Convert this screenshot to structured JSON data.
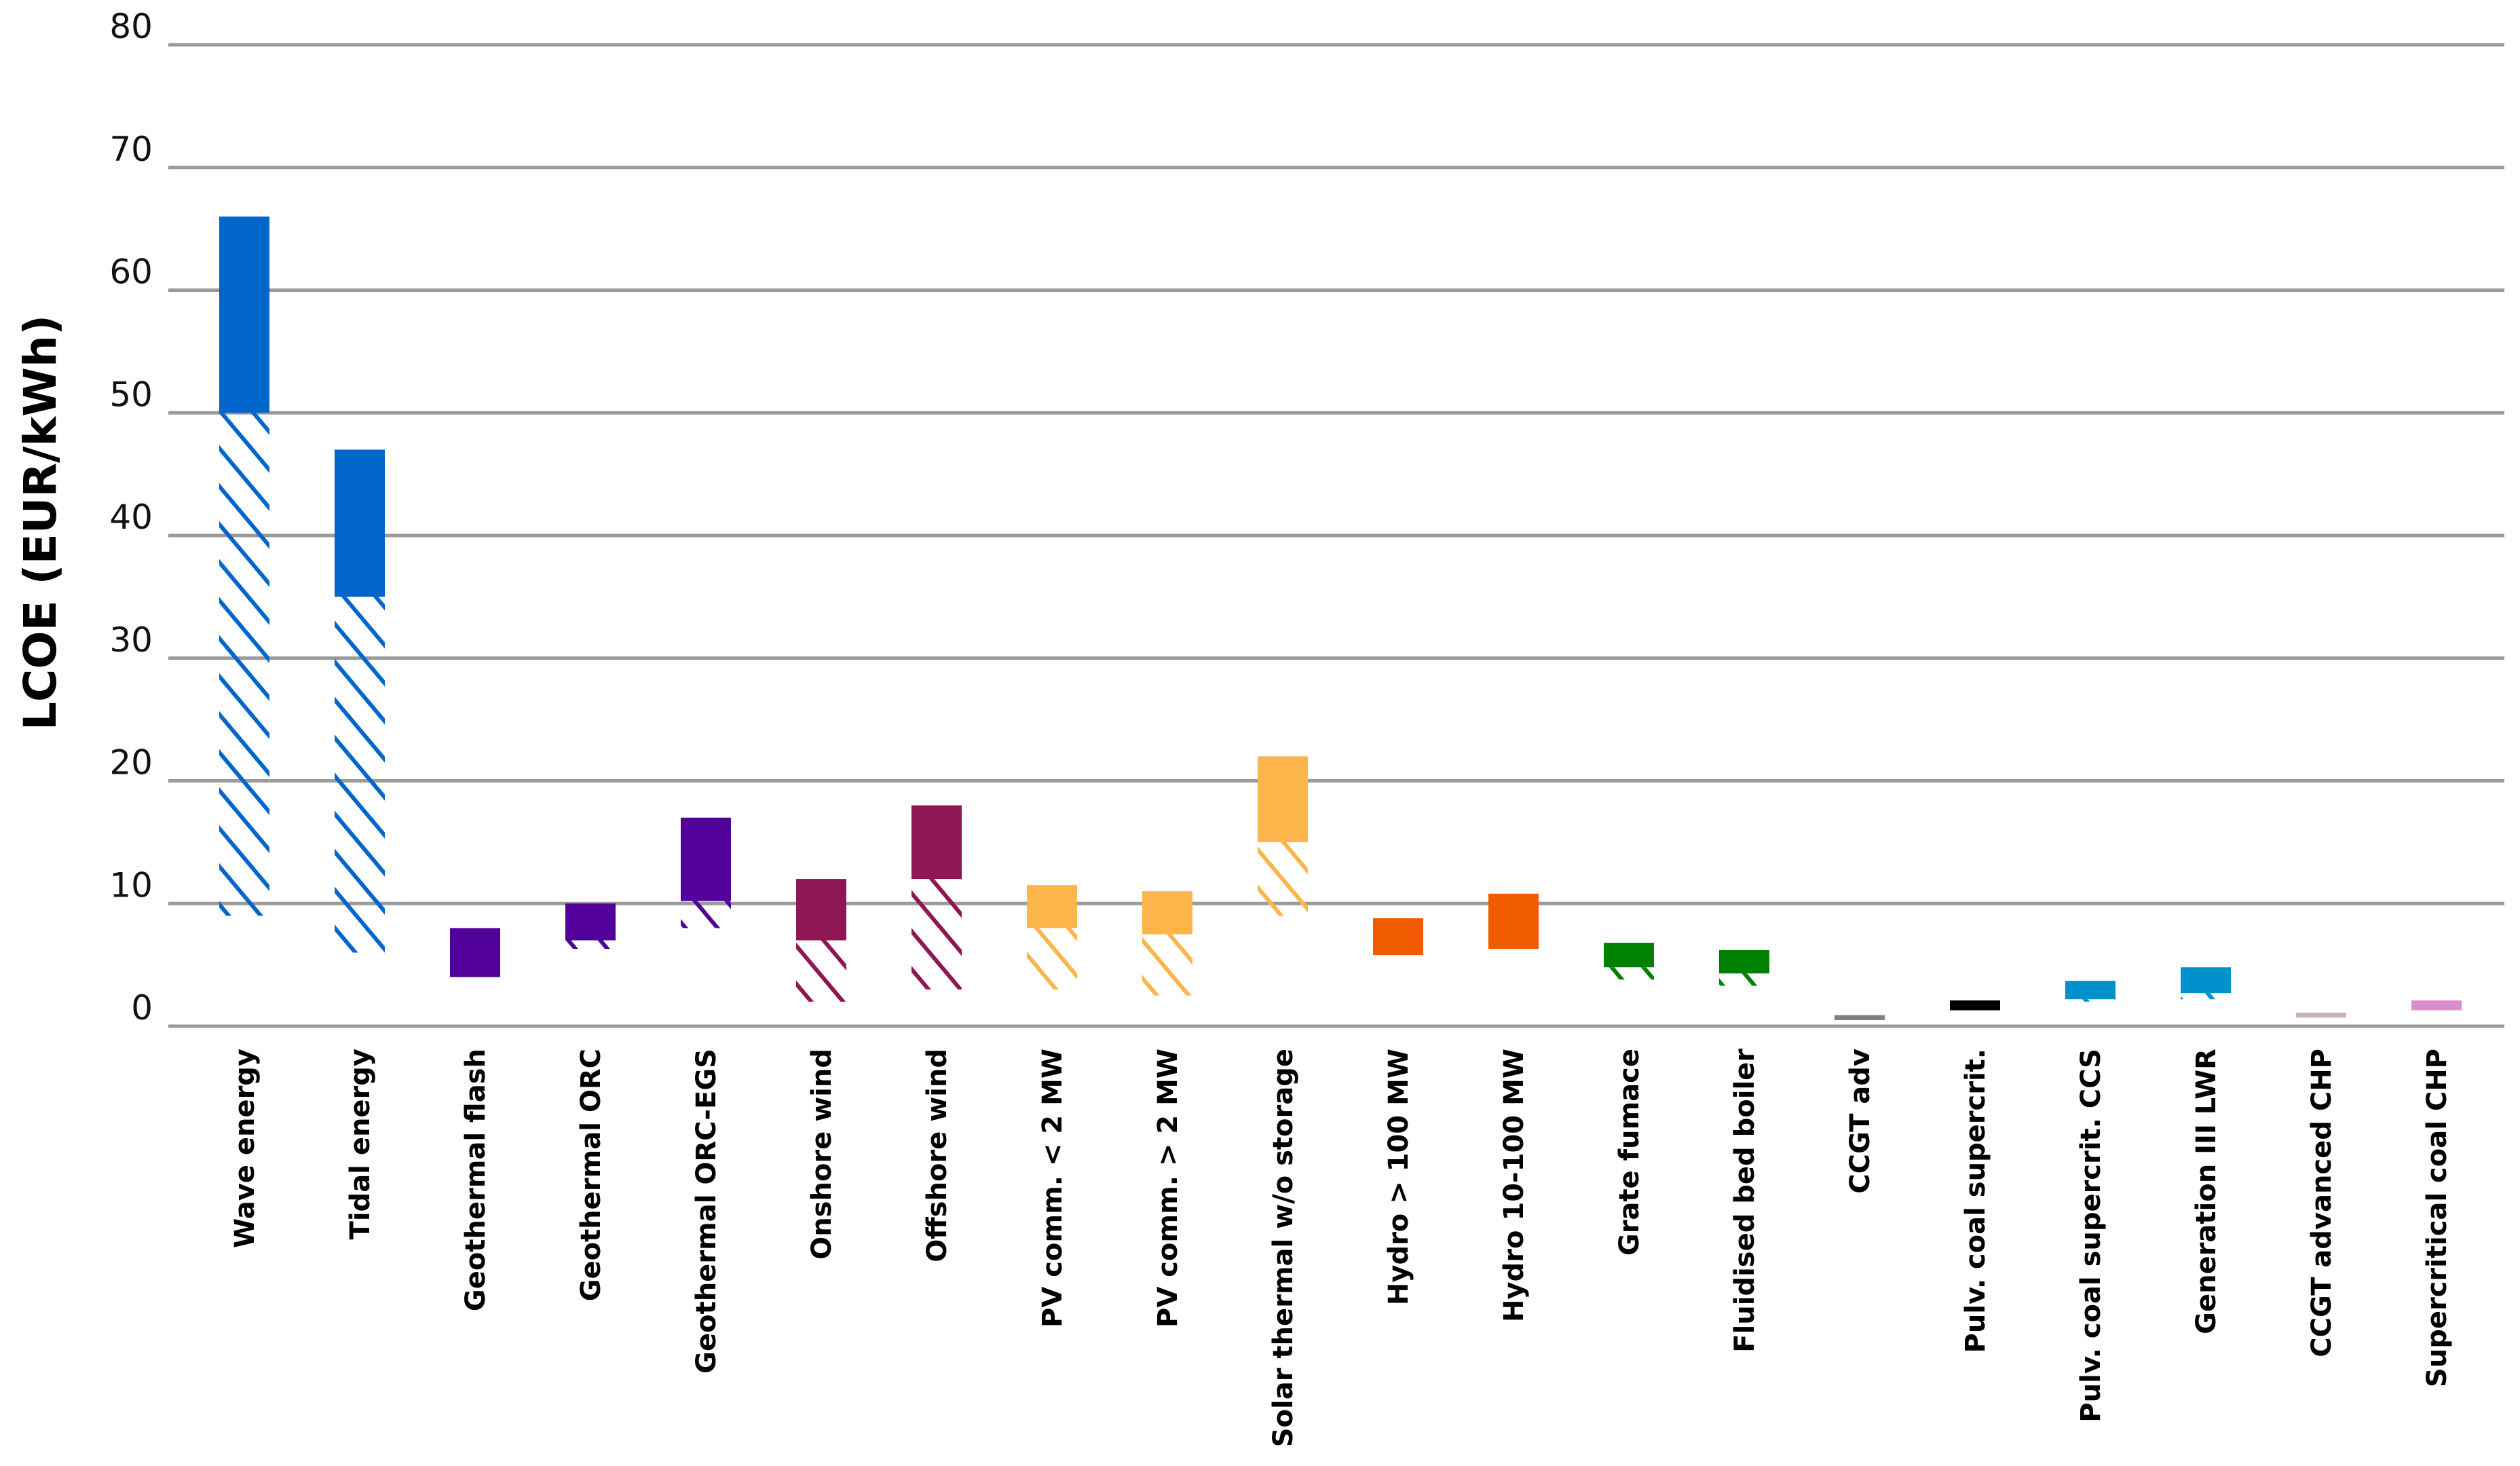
{
  "chart_data": {
    "type": "bar",
    "subtype": "floating-range",
    "title": "",
    "xlabel": "",
    "ylabel": "LCOE (EUR/kWh)",
    "ylim": [
      0,
      80
    ],
    "yticks": [
      "0",
      "10",
      "20",
      "30",
      "40",
      "50",
      "60",
      "70",
      "80"
    ],
    "grid": true,
    "legend": "none",
    "note": "",
    "categories": [
      {
        "name": "Wave energy",
        "low": 9,
        "mid": 50,
        "high": 66,
        "color": "#0066CC"
      },
      {
        "name": "Tidal energy",
        "low": 6,
        "mid": 35,
        "high": 47,
        "color": "#0066CC"
      },
      {
        "name": "Geothermal flash",
        "low": 4,
        "mid": 4,
        "high": 8,
        "color": "#52009A"
      },
      {
        "name": "Geothermal ORC",
        "low": 6.3,
        "mid": 7,
        "high": 10,
        "color": "#52009A"
      },
      {
        "name": "Geothermal ORC-EGS",
        "low": 8,
        "mid": 10.2,
        "high": 17,
        "color": "#52009A"
      },
      {
        "name": "Onshore wind",
        "low": 2,
        "mid": 7,
        "high": 12,
        "color": "#8E1652"
      },
      {
        "name": "Offshore wind",
        "low": 3,
        "mid": 12,
        "high": 18,
        "color": "#8E1652"
      },
      {
        "name": "PV comm. < 2 MW",
        "low": 3,
        "mid": 8,
        "high": 11.5,
        "color": "#FBB54B"
      },
      {
        "name": "PV comm. > 2 MW",
        "low": 2.5,
        "mid": 7.5,
        "high": 11,
        "color": "#FBB54B"
      },
      {
        "name": "Solar thermal w/o storage",
        "low": 9,
        "mid": 15,
        "high": 22,
        "color": "#FBB54B"
      },
      {
        "name": "Hydro > 100 MW",
        "low": 5.8,
        "mid": 5.8,
        "high": 8.8,
        "color": "#F05A00"
      },
      {
        "name": "Hydro 10-100 MW",
        "low": 6.3,
        "mid": 6.3,
        "high": 10.8,
        "color": "#F05A00"
      },
      {
        "name": "Grate fumace",
        "low": 3.8,
        "mid": 4.8,
        "high": 6.8,
        "color": "#008000"
      },
      {
        "name": "Fluidised bed boiler",
        "low": 3.3,
        "mid": 4.3,
        "high": 6.2,
        "color": "#008000"
      },
      {
        "name": "CCGT adv",
        "low": 0.5,
        "mid": 0.5,
        "high": 0.9,
        "color": "#808080"
      },
      {
        "name": "Pulv. coal supercrit.",
        "low": 1.3,
        "mid": 1.3,
        "high": 2.1,
        "color": "#000000"
      },
      {
        "name": "Pulv. coal supercrit. CCS",
        "low": 2.0,
        "mid": 2.2,
        "high": 3.7,
        "color": "#0090CC"
      },
      {
        "name": "Generation III LWR",
        "low": 2.2,
        "mid": 2.7,
        "high": 4.8,
        "color": "#0090CC"
      },
      {
        "name": "CCGT advanced CHP",
        "low": 0.7,
        "mid": 0.7,
        "high": 1.1,
        "color": "#C8B4B8"
      },
      {
        "name": "Supercritical coal CHP",
        "low": 1.3,
        "mid": 1.3,
        "high": 2.1,
        "color": "#D890CC"
      }
    ]
  }
}
